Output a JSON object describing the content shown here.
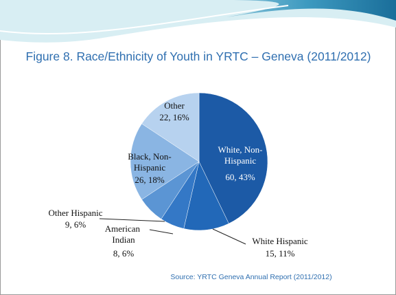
{
  "chart_data": {
    "type": "pie",
    "title": "Figure 8. Race/Ethnicity of Youth in YRTC – Geneva (2011/2012)",
    "source": "Source:  YRTC Geneva Annual Report (2011/2012)",
    "categories": [
      "White, Non-Hispanic",
      "White Hispanic",
      "American Indian",
      "Other Hispanic",
      "Black, Non-Hispanic",
      "Other"
    ],
    "values": [
      60,
      15,
      8,
      9,
      26,
      22
    ],
    "value_labels": [
      "60, 43%",
      "15, 11%",
      "8, 6%",
      "9, 6%",
      "26, 18%",
      "22, 16%"
    ],
    "colors": [
      "#1c5aa6",
      "#2268b8",
      "#3478c6",
      "#5b95d4",
      "#8ab5e3",
      "#b7d2ef"
    ]
  }
}
